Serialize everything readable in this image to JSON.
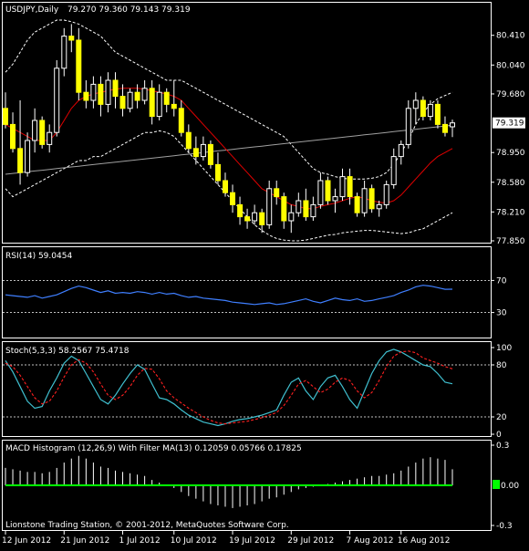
{
  "colors": {
    "background": "#000000",
    "frame": "#ffffff",
    "candle_up": "#000000",
    "candle_down": "#ffff00",
    "candle_outline": "#ffffff",
    "bollinger": "#ffffff",
    "ma_short": "#e00000",
    "ma_long": "#a0a0a0",
    "rsi_line": "#3f7fff",
    "stoch_main": "#40c0d0",
    "stoch_signal": "#ff2020",
    "macd_hist": "#ffffff",
    "macd_ma": "#00ff00",
    "price_tag_bg": "#ffffff",
    "price_tag_text": "#000000"
  },
  "footer": {
    "copyright": "Lionstone Trading Station, © 2001-2012, MetaQuotes Software Corp."
  },
  "chart_data": [
    {
      "type": "candlestick",
      "title": "USDJPY,Daily",
      "ohlc_text": "79.270 79.360 79.143 79.319",
      "ylim": [
        77.85,
        80.6
      ],
      "yticks": [
        "80.410",
        "80.040",
        "79.680",
        "79.319",
        "78.950",
        "78.580",
        "78.210",
        "77.850"
      ],
      "current_price": "79.319",
      "current_value": 79.319,
      "x_labels": [
        "12 Jun 2012",
        "21 Jun 2012",
        "1 Jul 2012",
        "10 Jul 2012",
        "19 Jul 2012",
        "29 Jul 2012",
        "7 Aug 2012",
        "16 Aug 2012"
      ],
      "candles": [
        {
          "o": 79.5,
          "h": 79.7,
          "l": 79.25,
          "c": 79.3
        },
        {
          "o": 79.3,
          "h": 79.45,
          "l": 78.95,
          "c": 79.0
        },
        {
          "o": 79.0,
          "h": 79.6,
          "l": 78.55,
          "c": 78.7
        },
        {
          "o": 78.7,
          "h": 79.2,
          "l": 78.65,
          "c": 79.1
        },
        {
          "o": 79.1,
          "h": 79.5,
          "l": 78.95,
          "c": 79.35
        },
        {
          "o": 79.35,
          "h": 79.4,
          "l": 79.0,
          "c": 79.05
        },
        {
          "o": 79.05,
          "h": 79.3,
          "l": 78.95,
          "c": 79.2
        },
        {
          "o": 79.2,
          "h": 80.1,
          "l": 79.15,
          "c": 80.0
        },
        {
          "o": 80.0,
          "h": 80.5,
          "l": 79.9,
          "c": 80.4
        },
        {
          "o": 80.4,
          "h": 80.55,
          "l": 80.2,
          "c": 80.35
        },
        {
          "o": 80.35,
          "h": 80.5,
          "l": 79.6,
          "c": 79.7
        },
        {
          "o": 79.7,
          "h": 79.85,
          "l": 79.5,
          "c": 79.6
        },
        {
          "o": 79.6,
          "h": 79.9,
          "l": 79.5,
          "c": 79.8
        },
        {
          "o": 79.8,
          "h": 79.9,
          "l": 79.4,
          "c": 79.55
        },
        {
          "o": 79.55,
          "h": 79.95,
          "l": 79.45,
          "c": 79.85
        },
        {
          "o": 79.85,
          "h": 79.95,
          "l": 79.5,
          "c": 79.65
        },
        {
          "o": 79.65,
          "h": 79.8,
          "l": 79.4,
          "c": 79.5
        },
        {
          "o": 79.5,
          "h": 79.75,
          "l": 79.45,
          "c": 79.7
        },
        {
          "o": 79.7,
          "h": 79.8,
          "l": 79.5,
          "c": 79.6
        },
        {
          "o": 79.6,
          "h": 79.85,
          "l": 79.55,
          "c": 79.75
        },
        {
          "o": 79.75,
          "h": 79.85,
          "l": 79.3,
          "c": 79.4
        },
        {
          "o": 79.4,
          "h": 79.8,
          "l": 79.35,
          "c": 79.7
        },
        {
          "o": 79.7,
          "h": 79.75,
          "l": 79.45,
          "c": 79.55
        },
        {
          "o": 79.55,
          "h": 79.85,
          "l": 79.4,
          "c": 79.5
        },
        {
          "o": 79.5,
          "h": 79.6,
          "l": 79.15,
          "c": 79.2
        },
        {
          "o": 79.2,
          "h": 79.3,
          "l": 78.95,
          "c": 79.0
        },
        {
          "o": 79.0,
          "h": 79.15,
          "l": 78.8,
          "c": 78.9
        },
        {
          "o": 78.9,
          "h": 79.15,
          "l": 78.85,
          "c": 79.05
        },
        {
          "o": 79.05,
          "h": 79.1,
          "l": 78.75,
          "c": 78.8
        },
        {
          "o": 78.8,
          "h": 78.95,
          "l": 78.55,
          "c": 78.6
        },
        {
          "o": 78.6,
          "h": 78.7,
          "l": 78.4,
          "c": 78.45
        },
        {
          "o": 78.45,
          "h": 78.55,
          "l": 78.2,
          "c": 78.3
        },
        {
          "o": 78.3,
          "h": 78.4,
          "l": 78.05,
          "c": 78.15
        },
        {
          "o": 78.15,
          "h": 78.25,
          "l": 78.0,
          "c": 78.1
        },
        {
          "o": 78.1,
          "h": 78.3,
          "l": 78.05,
          "c": 78.2
        },
        {
          "o": 78.2,
          "h": 78.25,
          "l": 77.95,
          "c": 78.05
        },
        {
          "o": 78.05,
          "h": 78.6,
          "l": 78.0,
          "c": 78.5
        },
        {
          "o": 78.5,
          "h": 78.6,
          "l": 78.3,
          "c": 78.4
        },
        {
          "o": 78.4,
          "h": 78.45,
          "l": 78.0,
          "c": 78.1
        },
        {
          "o": 78.1,
          "h": 78.3,
          "l": 77.95,
          "c": 78.2
        },
        {
          "o": 78.2,
          "h": 78.45,
          "l": 78.15,
          "c": 78.35
        },
        {
          "o": 78.35,
          "h": 78.5,
          "l": 78.1,
          "c": 78.15
        },
        {
          "o": 78.15,
          "h": 78.4,
          "l": 78.1,
          "c": 78.3
        },
        {
          "o": 78.3,
          "h": 78.7,
          "l": 78.25,
          "c": 78.6
        },
        {
          "o": 78.6,
          "h": 78.65,
          "l": 78.3,
          "c": 78.35
        },
        {
          "o": 78.35,
          "h": 78.5,
          "l": 78.2,
          "c": 78.4
        },
        {
          "o": 78.4,
          "h": 78.75,
          "l": 78.35,
          "c": 78.65
        },
        {
          "o": 78.65,
          "h": 78.75,
          "l": 78.3,
          "c": 78.4
        },
        {
          "o": 78.4,
          "h": 78.45,
          "l": 78.15,
          "c": 78.2
        },
        {
          "o": 78.2,
          "h": 78.6,
          "l": 78.15,
          "c": 78.5
        },
        {
          "o": 78.5,
          "h": 78.55,
          "l": 78.2,
          "c": 78.25
        },
        {
          "o": 78.25,
          "h": 78.35,
          "l": 78.15,
          "c": 78.3
        },
        {
          "o": 78.3,
          "h": 78.6,
          "l": 78.25,
          "c": 78.55
        },
        {
          "o": 78.55,
          "h": 79.0,
          "l": 78.5,
          "c": 78.9
        },
        {
          "o": 78.9,
          "h": 79.1,
          "l": 78.8,
          "c": 79.05
        },
        {
          "o": 79.05,
          "h": 79.6,
          "l": 79.0,
          "c": 79.5
        },
        {
          "o": 79.5,
          "h": 79.7,
          "l": 79.3,
          "c": 79.6
        },
        {
          "o": 79.6,
          "h": 79.65,
          "l": 79.35,
          "c": 79.4
        },
        {
          "o": 79.4,
          "h": 79.6,
          "l": 79.35,
          "c": 79.55
        },
        {
          "o": 79.55,
          "h": 79.6,
          "l": 79.25,
          "c": 79.3
        },
        {
          "o": 79.3,
          "h": 79.4,
          "l": 79.15,
          "c": 79.2
        },
        {
          "o": 79.27,
          "h": 79.36,
          "l": 79.143,
          "c": 79.319
        }
      ],
      "bollinger_upper": [
        79.95,
        80.05,
        80.2,
        80.35,
        80.45,
        80.5,
        80.55,
        80.6,
        80.6,
        80.58,
        80.55,
        80.5,
        80.45,
        80.4,
        80.3,
        80.2,
        80.15,
        80.1,
        80.05,
        80.0,
        79.95,
        79.9,
        79.85,
        79.85,
        79.85,
        79.8,
        79.75,
        79.7,
        79.65,
        79.6,
        79.55,
        79.5,
        79.45,
        79.4,
        79.35,
        79.3,
        79.25,
        79.2,
        79.15,
        79.05,
        78.95,
        78.85,
        78.75,
        78.7,
        78.68,
        78.65,
        78.63,
        78.62,
        78.62,
        78.62,
        78.63,
        78.65,
        78.7,
        78.8,
        78.95,
        79.1,
        79.3,
        79.45,
        79.55,
        79.62,
        79.66,
        79.7
      ],
      "bollinger_lower": [
        78.5,
        78.4,
        78.45,
        78.5,
        78.55,
        78.6,
        78.65,
        78.7,
        78.75,
        78.8,
        78.85,
        78.85,
        78.9,
        78.9,
        78.95,
        79.0,
        79.05,
        79.1,
        79.15,
        79.2,
        79.2,
        79.22,
        79.2,
        79.15,
        79.05,
        78.95,
        78.85,
        78.75,
        78.65,
        78.55,
        78.45,
        78.35,
        78.25,
        78.15,
        78.05,
        77.98,
        77.92,
        77.88,
        77.86,
        77.85,
        77.85,
        77.86,
        77.88,
        77.9,
        77.92,
        77.93,
        77.95,
        77.96,
        77.97,
        77.98,
        77.98,
        77.97,
        77.96,
        77.95,
        77.94,
        77.95,
        77.98,
        78.0,
        78.05,
        78.1,
        78.15,
        78.2
      ],
      "ma_short": [
        79.3,
        79.25,
        79.2,
        79.15,
        79.1,
        79.1,
        79.1,
        79.2,
        79.35,
        79.5,
        79.6,
        79.65,
        79.68,
        79.7,
        79.72,
        79.74,
        79.75,
        79.75,
        79.75,
        79.74,
        79.72,
        79.7,
        79.68,
        79.65,
        79.6,
        79.5,
        79.4,
        79.3,
        79.2,
        79.1,
        79.0,
        78.9,
        78.8,
        78.7,
        78.6,
        78.5,
        78.45,
        78.4,
        78.35,
        78.3,
        78.28,
        78.25,
        78.25,
        78.28,
        78.3,
        78.32,
        78.35,
        78.38,
        78.4,
        78.38,
        78.35,
        78.33,
        78.32,
        78.35,
        78.42,
        78.52,
        78.62,
        78.72,
        78.82,
        78.9,
        78.95,
        79.0
      ],
      "ma_long": [
        78.68,
        78.69,
        78.7,
        78.71,
        78.72,
        78.73,
        78.74,
        78.75,
        78.76,
        78.77,
        78.78,
        78.79,
        78.8,
        78.81,
        78.82,
        78.83,
        78.84,
        78.85,
        78.86,
        78.87,
        78.88,
        78.89,
        78.9,
        78.91,
        78.92,
        78.93,
        78.94,
        78.95,
        78.96,
        78.97,
        78.98,
        78.99,
        79.0,
        79.01,
        79.02,
        79.03,
        79.04,
        79.05,
        79.06,
        79.07,
        79.08,
        79.09,
        79.1,
        79.11,
        79.12,
        79.13,
        79.14,
        79.15,
        79.16,
        79.17,
        79.18,
        79.19,
        79.2,
        79.21,
        79.22,
        79.23,
        79.24,
        79.25,
        79.26,
        79.27,
        79.28,
        79.29
      ]
    },
    {
      "type": "line",
      "title": "RSI(14) 59.0454",
      "ylim": [
        0,
        100
      ],
      "levels": [
        70,
        30
      ],
      "yticks": [
        "70",
        "30"
      ],
      "values": [
        52,
        51,
        50,
        49,
        51,
        48,
        50,
        52,
        56,
        60,
        63,
        61,
        58,
        55,
        57,
        54,
        55,
        54,
        56,
        55,
        53,
        55,
        53,
        54,
        51,
        49,
        50,
        48,
        47,
        46,
        45,
        43,
        42,
        41,
        40,
        41,
        42,
        40,
        41,
        43,
        45,
        47,
        44,
        42,
        45,
        48,
        46,
        45,
        47,
        44,
        45,
        47,
        49,
        51,
        55,
        58,
        62,
        64,
        63,
        61,
        59,
        59.0454
      ]
    },
    {
      "type": "line",
      "title": "Stoch(5,3,3) 58.2567 75.4718",
      "ylim": [
        0,
        100
      ],
      "levels": [
        80,
        20
      ],
      "yticks": [
        "100",
        "80",
        "20",
        "0"
      ],
      "series": [
        {
          "values": [
            85,
            72,
            55,
            38,
            30,
            32,
            50,
            65,
            82,
            90,
            85,
            70,
            55,
            40,
            35,
            45,
            58,
            70,
            80,
            75,
            58,
            42,
            40,
            35,
            28,
            22,
            18,
            14,
            12,
            10,
            12,
            15,
            17,
            18,
            20,
            22,
            25,
            28,
            45,
            60,
            65,
            50,
            40,
            55,
            65,
            68,
            55,
            40,
            30,
            50,
            70,
            85,
            95,
            98,
            95,
            90,
            85,
            80,
            78,
            70,
            60,
            58.2567
          ]
        },
        {
          "values": [
            82,
            78,
            68,
            55,
            42,
            35,
            38,
            50,
            66,
            80,
            86,
            82,
            72,
            58,
            45,
            40,
            45,
            55,
            68,
            76,
            75,
            64,
            50,
            42,
            36,
            30,
            25,
            20,
            16,
            13,
            12,
            13,
            14,
            15,
            17,
            19,
            22,
            25,
            33,
            45,
            58,
            62,
            55,
            48,
            52,
            60,
            65,
            62,
            50,
            42,
            48,
            62,
            78,
            90,
            95,
            96,
            94,
            88,
            85,
            82,
            78,
            75.4718
          ]
        }
      ]
    },
    {
      "type": "bar",
      "title": "MACD Histogram (12,26,9) With Filter MA(13) 0.12059 0.05766 0.17825",
      "ylim": [
        -0.3,
        0.3
      ],
      "yticks": [
        "0.3",
        "0.00",
        "-0.3"
      ],
      "current_value": "0.00",
      "values": [
        0.13,
        0.12,
        0.11,
        0.1,
        0.1,
        0.09,
        0.1,
        0.13,
        0.17,
        0.2,
        0.22,
        0.2,
        0.17,
        0.14,
        0.13,
        0.11,
        0.1,
        0.09,
        0.08,
        0.07,
        0.04,
        0.02,
        0.0,
        -0.02,
        -0.05,
        -0.08,
        -0.1,
        -0.12,
        -0.14,
        -0.15,
        -0.16,
        -0.17,
        -0.16,
        -0.15,
        -0.14,
        -0.12,
        -0.1,
        -0.09,
        -0.07,
        -0.05,
        -0.03,
        -0.02,
        -0.01,
        0.0,
        0.01,
        0.02,
        0.03,
        0.04,
        0.05,
        0.06,
        0.07,
        0.07,
        0.08,
        0.09,
        0.11,
        0.14,
        0.17,
        0.2,
        0.21,
        0.2,
        0.19,
        0.12059
      ],
      "filter_ma": [
        0,
        0,
        0,
        0,
        0,
        0,
        0,
        0,
        0,
        0,
        0,
        0,
        0,
        0,
        0,
        0,
        0,
        0,
        0,
        0,
        0,
        0,
        0,
        0,
        0,
        0,
        0,
        0,
        0,
        0,
        0,
        0,
        0,
        0,
        0,
        0,
        0,
        0,
        0,
        0,
        0,
        0,
        0,
        0,
        0,
        0,
        0,
        0,
        0,
        0,
        0,
        0,
        0,
        0,
        0,
        0,
        0,
        0,
        0,
        0,
        0,
        0
      ]
    }
  ]
}
